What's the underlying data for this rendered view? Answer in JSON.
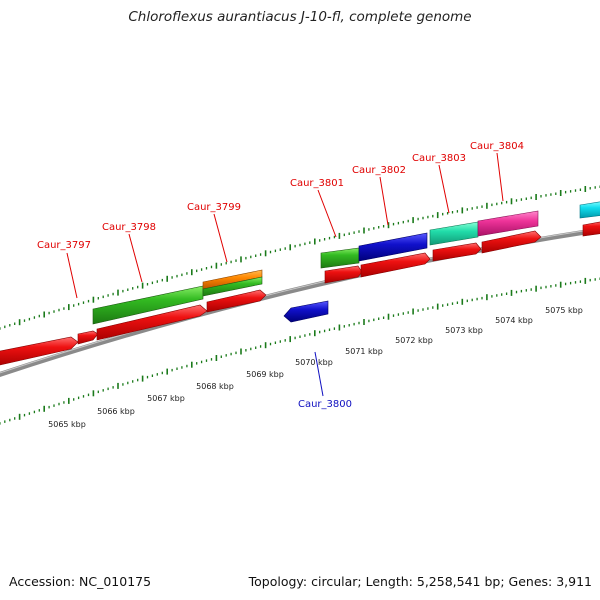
{
  "title": "Chloroflexus aurantiacus J-10-fl, complete genome",
  "footer": {
    "accession": "Accession: NC_010175",
    "summary": "Topology: circular; Length: 5,258,541 bp; Genes: 3,911"
  },
  "colors": {
    "label_forward": "#e00000",
    "label_reverse": "#1010c0",
    "tick": "#1a7a1a",
    "backbone": "#8a8a8a",
    "cds": "#ee1111",
    "green": "#33bb22",
    "orange": "#ff8800",
    "blue": "#1111cc",
    "mint": "#22ddaa",
    "pink": "#ee3399",
    "cyan": "#11ddee"
  },
  "scale_labels": [
    "5065 kbp",
    "5066 kbp",
    "5067 kbp",
    "5068 kbp",
    "5069 kbp",
    "5070 kbp",
    "5071 kbp",
    "5072 kbp",
    "5073 kbp",
    "5074 kbp",
    "5075 kbp"
  ],
  "genes": [
    {
      "name": "Caur_3797",
      "strand": "forward"
    },
    {
      "name": "Caur_3798",
      "strand": "forward"
    },
    {
      "name": "Caur_3799",
      "strand": "forward"
    },
    {
      "name": "Caur_3800",
      "strand": "reverse"
    },
    {
      "name": "Caur_3801",
      "strand": "forward"
    },
    {
      "name": "Caur_3802",
      "strand": "forward"
    },
    {
      "name": "Caur_3803",
      "strand": "forward"
    },
    {
      "name": "Caur_3804",
      "strand": "forward"
    }
  ]
}
